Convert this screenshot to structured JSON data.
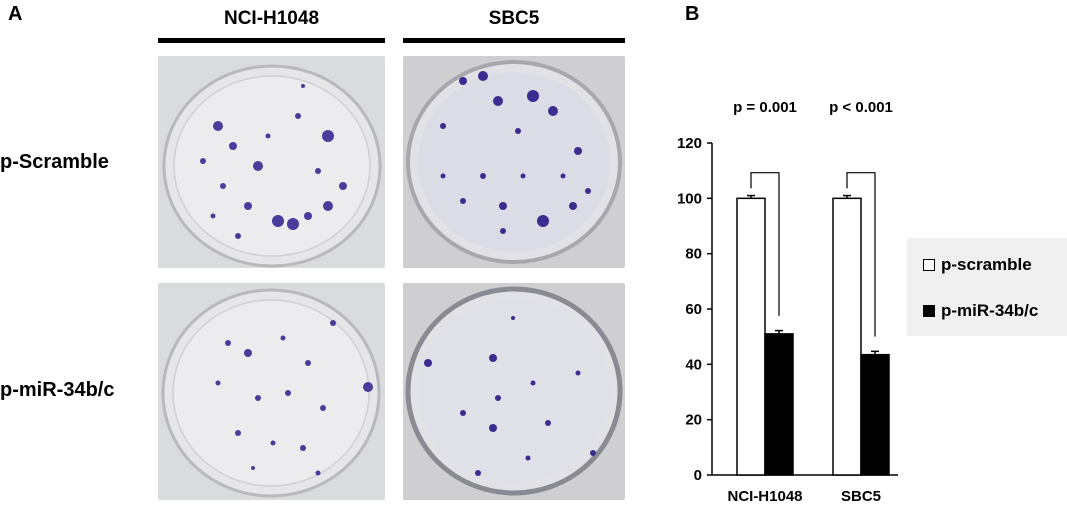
{
  "figure": {
    "panel_a": "A",
    "panel_b": "B",
    "columns": [
      "NCI-H1048",
      "SBC5"
    ],
    "rows": [
      "p-Scramble",
      "p-miR-34b/c"
    ]
  },
  "chart_data": {
    "type": "bar",
    "categories": [
      "NCI-H1048",
      "SBC5"
    ],
    "series": [
      {
        "name": "p-scramble",
        "values": [
          100,
          100
        ],
        "errors": [
          1,
          1
        ],
        "color": "#ffffff"
      },
      {
        "name": "p-miR-34b/c",
        "values": [
          51,
          43.5
        ],
        "errors": [
          1.2,
          1.2
        ],
        "color": "#000000"
      }
    ],
    "ylim": [
      0,
      120
    ],
    "yticks": [
      0,
      20,
      40,
      60,
      80,
      100,
      120
    ],
    "significance": [
      "p = 0.001",
      "p < 0.001"
    ],
    "legend_position": "right",
    "grid": false
  },
  "colors": {
    "stain": "#3b2d8f",
    "plate_bg": "#dcdcdc"
  }
}
